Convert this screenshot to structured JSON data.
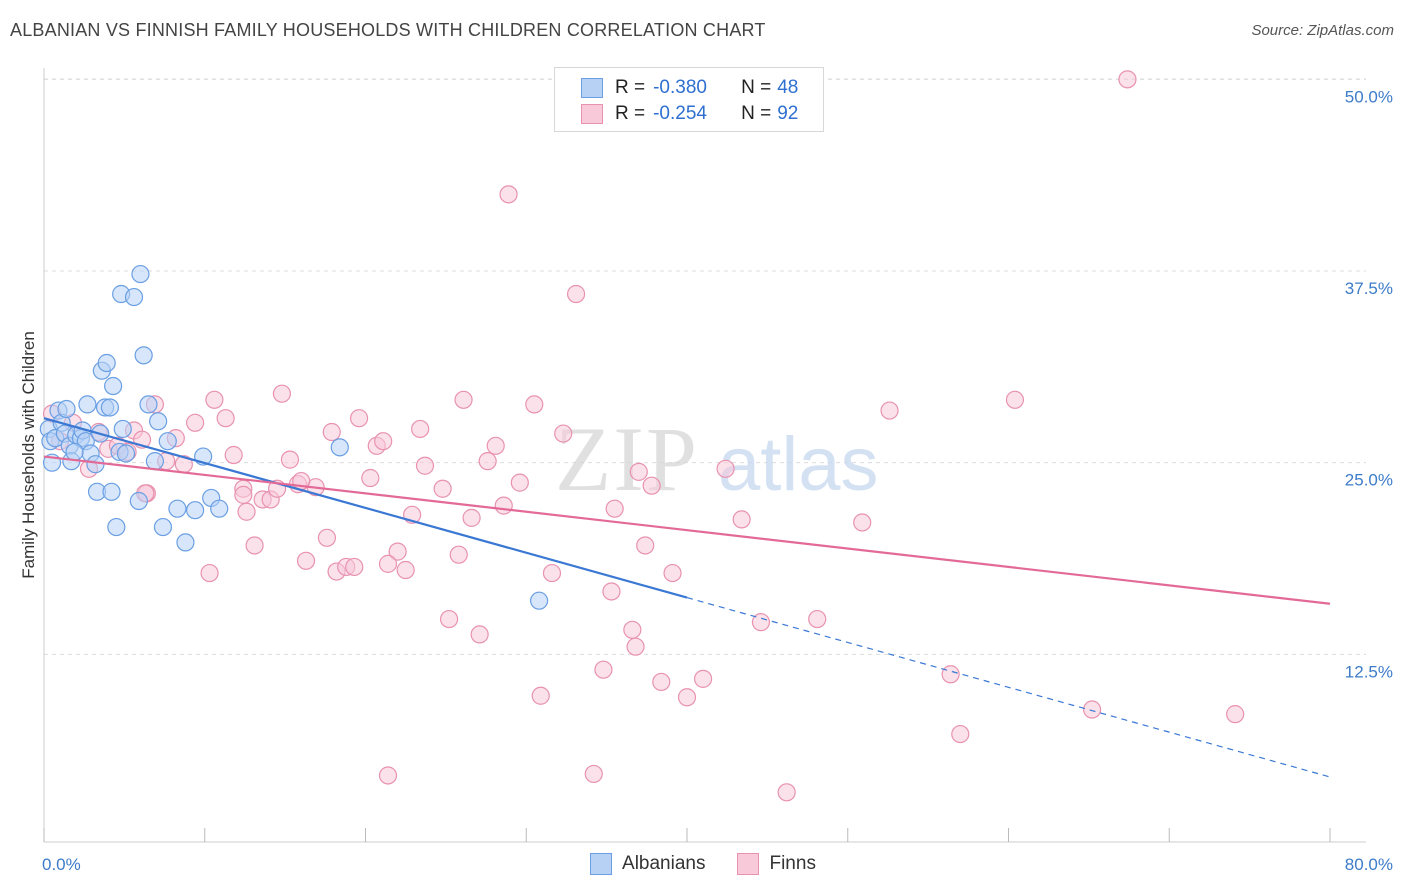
{
  "title": "ALBANIAN VS FINNISH FAMILY HOUSEHOLDS WITH CHILDREN CORRELATION CHART",
  "source": "Source: ZipAtlas.com",
  "watermark": {
    "zip": "ZIP",
    "atlas": "atlas"
  },
  "legend": {
    "r_label": "R =",
    "n_label": "N =",
    "rows": [
      {
        "name": "Albanians",
        "r": "-0.380",
        "n": "48",
        "fill": "#b7d1f5",
        "stroke": "#6a9fe3"
      },
      {
        "name": "Finns",
        "r": "-0.254",
        "n": "92",
        "fill": "#f8c9d8",
        "stroke": "#e892b0"
      }
    ]
  },
  "chart_data": {
    "type": "scatter",
    "xlabel": "",
    "ylabel": "Family Households with Children",
    "xlim": [
      0,
      80
    ],
    "ylim": [
      0,
      52
    ],
    "x_tick_labels": [
      "0.0%",
      "80.0%"
    ],
    "y_ticks": [
      12.5,
      25.0,
      37.5,
      50.0
    ],
    "y_tick_labels": [
      "12.5%",
      "25.0%",
      "37.5%",
      "50.0%"
    ],
    "grid": true,
    "series": [
      {
        "name": "Albanians",
        "color": "#3a78d4",
        "fill": "#b7d1f5",
        "stroke": "#6a9fe3",
        "trend": {
          "x0": 0,
          "y0": 27.9,
          "x1": 40,
          "y1": 16.2,
          "dash_x1": 80
        },
        "points": [
          [
            0.3,
            27.2
          ],
          [
            0.4,
            26.4
          ],
          [
            0.5,
            25.0
          ],
          [
            0.7,
            26.6
          ],
          [
            0.9,
            28.4
          ],
          [
            1.1,
            27.6
          ],
          [
            1.3,
            26.9
          ],
          [
            1.4,
            28.5
          ],
          [
            1.6,
            26.1
          ],
          [
            1.7,
            25.1
          ],
          [
            2.0,
            26.8
          ],
          [
            2.3,
            26.6
          ],
          [
            2.4,
            27.1
          ],
          [
            2.6,
            26.4
          ],
          [
            2.7,
            28.8
          ],
          [
            2.9,
            25.6
          ],
          [
            3.2,
            24.9
          ],
          [
            3.3,
            23.1
          ],
          [
            3.5,
            26.9
          ],
          [
            3.6,
            31.0
          ],
          [
            3.8,
            28.6
          ],
          [
            3.9,
            31.5
          ],
          [
            4.1,
            28.6
          ],
          [
            4.2,
            23.1
          ],
          [
            4.3,
            30.0
          ],
          [
            4.5,
            20.8
          ],
          [
            4.7,
            25.7
          ],
          [
            4.8,
            36.0
          ],
          [
            4.9,
            27.2
          ],
          [
            5.1,
            25.6
          ],
          [
            5.6,
            35.8
          ],
          [
            5.9,
            22.5
          ],
          [
            6.2,
            32.0
          ],
          [
            6.5,
            28.8
          ],
          [
            6.9,
            25.1
          ],
          [
            7.1,
            27.7
          ],
          [
            7.4,
            20.8
          ],
          [
            7.7,
            26.4
          ],
          [
            8.3,
            22.0
          ],
          [
            8.8,
            19.8
          ],
          [
            9.4,
            21.9
          ],
          [
            9.9,
            25.4
          ],
          [
            10.4,
            22.7
          ],
          [
            10.9,
            22.0
          ],
          [
            18.4,
            26.0
          ],
          [
            30.8,
            16.0
          ],
          [
            6.0,
            37.3
          ],
          [
            1.9,
            25.7
          ]
        ]
      },
      {
        "name": "Finns",
        "color": "#e36a96",
        "fill": "#f8c9d8",
        "stroke": "#e892b0",
        "trend": {
          "x0": 0,
          "y0": 25.4,
          "x1": 80,
          "y1": 15.8
        },
        "points": [
          [
            0.5,
            28.2
          ],
          [
            1.0,
            26.4
          ],
          [
            1.8,
            27.6
          ],
          [
            2.8,
            24.6
          ],
          [
            3.4,
            27.0
          ],
          [
            4.0,
            25.9
          ],
          [
            4.6,
            26.1
          ],
          [
            5.2,
            25.7
          ],
          [
            5.6,
            27.1
          ],
          [
            6.1,
            26.5
          ],
          [
            6.4,
            23.0
          ],
          [
            6.9,
            28.8
          ],
          [
            7.6,
            25.1
          ],
          [
            8.2,
            26.6
          ],
          [
            8.7,
            24.9
          ],
          [
            9.4,
            27.6
          ],
          [
            10.3,
            17.8
          ],
          [
            10.6,
            29.1
          ],
          [
            11.3,
            27.9
          ],
          [
            11.8,
            25.5
          ],
          [
            12.4,
            23.3
          ],
          [
            12.6,
            21.8
          ],
          [
            13.1,
            19.6
          ],
          [
            13.6,
            22.6
          ],
          [
            14.1,
            22.6
          ],
          [
            14.5,
            23.3
          ],
          [
            14.8,
            29.5
          ],
          [
            15.3,
            25.2
          ],
          [
            15.8,
            23.6
          ],
          [
            16.3,
            18.6
          ],
          [
            16.9,
            23.4
          ],
          [
            17.6,
            20.1
          ],
          [
            17.9,
            27.0
          ],
          [
            18.2,
            17.9
          ],
          [
            18.8,
            18.2
          ],
          [
            19.3,
            18.2
          ],
          [
            19.6,
            27.9
          ],
          [
            20.3,
            24.0
          ],
          [
            20.7,
            26.1
          ],
          [
            21.1,
            26.4
          ],
          [
            21.4,
            4.6
          ],
          [
            22.0,
            19.2
          ],
          [
            22.5,
            18.0
          ],
          [
            22.9,
            21.6
          ],
          [
            23.4,
            27.2
          ],
          [
            23.7,
            24.8
          ],
          [
            24.8,
            23.3
          ],
          [
            25.2,
            14.8
          ],
          [
            25.8,
            19.0
          ],
          [
            26.1,
            29.1
          ],
          [
            26.6,
            21.4
          ],
          [
            27.1,
            13.8
          ],
          [
            27.6,
            25.1
          ],
          [
            28.1,
            26.1
          ],
          [
            28.6,
            22.2
          ],
          [
            28.9,
            42.5
          ],
          [
            29.6,
            23.7
          ],
          [
            30.5,
            28.8
          ],
          [
            30.9,
            9.8
          ],
          [
            31.6,
            17.8
          ],
          [
            32.3,
            26.9
          ],
          [
            33.1,
            36.0
          ],
          [
            34.2,
            4.7
          ],
          [
            34.8,
            11.5
          ],
          [
            35.3,
            16.6
          ],
          [
            35.5,
            22.0
          ],
          [
            36.6,
            14.1
          ],
          [
            36.8,
            13.0
          ],
          [
            37.0,
            24.4
          ],
          [
            37.4,
            19.6
          ],
          [
            37.8,
            23.5
          ],
          [
            38.4,
            10.7
          ],
          [
            39.1,
            17.8
          ],
          [
            40.0,
            9.7
          ],
          [
            41.0,
            10.9
          ],
          [
            42.4,
            24.6
          ],
          [
            43.4,
            21.3
          ],
          [
            44.6,
            14.6
          ],
          [
            46.2,
            3.5
          ],
          [
            48.1,
            14.8
          ],
          [
            50.9,
            21.1
          ],
          [
            52.6,
            28.4
          ],
          [
            56.4,
            11.2
          ],
          [
            57.0,
            7.3
          ],
          [
            60.4,
            29.1
          ],
          [
            65.2,
            8.9
          ],
          [
            67.4,
            50.0
          ],
          [
            74.1,
            8.6
          ],
          [
            21.4,
            18.4
          ],
          [
            16.0,
            23.8
          ],
          [
            12.4,
            22.9
          ],
          [
            6.3,
            23.0
          ]
        ]
      }
    ]
  }
}
